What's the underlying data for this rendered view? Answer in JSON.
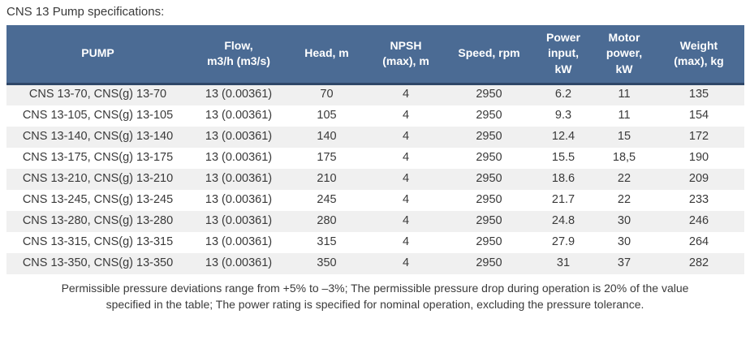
{
  "page": {
    "title": "CNS 13 Pump specifications:"
  },
  "table": {
    "columns": [
      "PUMP",
      "Flow,\nm3/h (m3/s)",
      "Head, m",
      "NPSH\n(max), m",
      "Speed, rpm",
      "Power\ninput,\nkW",
      "Motor\npower,\nkW",
      "Weight\n(max), kg"
    ],
    "rows": [
      [
        "CNS 13-70, CNS(g) 13-70",
        "13 (0.00361)",
        "70",
        "4",
        "2950",
        "6.2",
        "11",
        "135"
      ],
      [
        "CNS 13-105, CNS(g) 13-105",
        "13 (0.00361)",
        "105",
        "4",
        "2950",
        "9.3",
        "11",
        "154"
      ],
      [
        "CNS 13-140, CNS(g) 13-140",
        "13 (0.00361)",
        "140",
        "4",
        "2950",
        "12.4",
        "15",
        "172"
      ],
      [
        "CNS 13-175, CNS(g) 13-175",
        "13 (0.00361)",
        "175",
        "4",
        "2950",
        "15.5",
        "18,5",
        "190"
      ],
      [
        "CNS 13-210, CNS(g) 13-210",
        "13 (0.00361)",
        "210",
        "4",
        "2950",
        "18.6",
        "22",
        "209"
      ],
      [
        "CNS 13-245, CNS(g) 13-245",
        "13 (0.00361)",
        "245",
        "4",
        "2950",
        "21.7",
        "22",
        "233"
      ],
      [
        "CNS 13-280, CNS(g) 13-280",
        "13 (0.00361)",
        "280",
        "4",
        "2950",
        "24.8",
        "30",
        "246"
      ],
      [
        "CNS 13-315, CNS(g) 13-315",
        "13 (0.00361)",
        "315",
        "4",
        "2950",
        "27.9",
        "30",
        "264"
      ],
      [
        "CNS 13-350, CNS(g) 13-350",
        "13 (0.00361)",
        "350",
        "4",
        "2950",
        "31",
        "37",
        "282"
      ]
    ]
  },
  "footer": {
    "note": "Permissible pressure deviations range from +5% to –3%; The permissible pressure drop during operation is 20% of the value\nspecified in the table; The power rating is specified for nominal operation, excluding the pressure tolerance."
  },
  "colors": {
    "header_bg": "#4b6b94",
    "header_border": "#2f4768",
    "row_alt_bg": "#f0f0f0",
    "row_bg": "#ffffff",
    "text": "#3a3a3a",
    "header_text": "#ffffff"
  }
}
